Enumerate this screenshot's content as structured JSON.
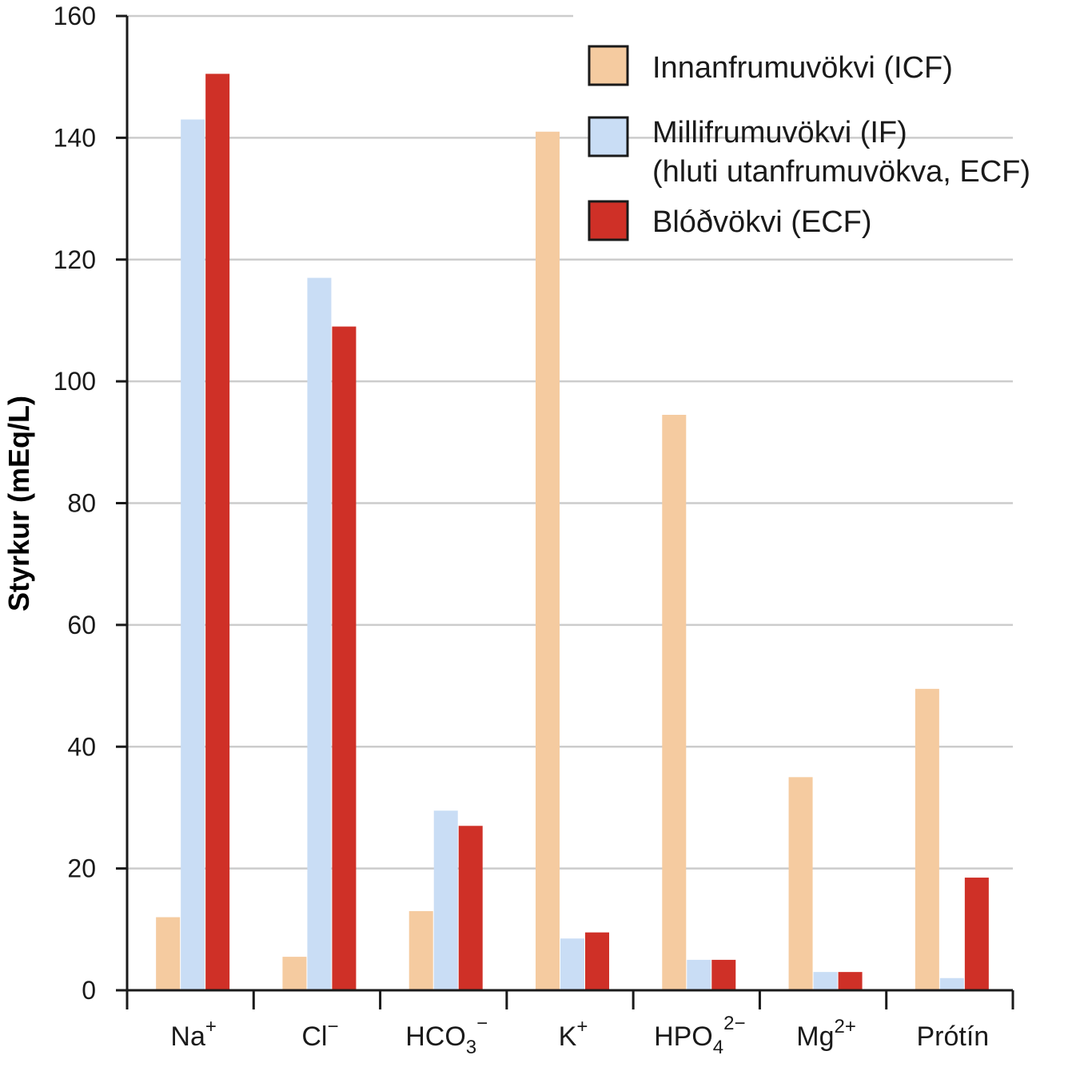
{
  "chart_data": {
    "type": "bar",
    "ylabel": "Styrkur (mEq/L)",
    "xlabel": "",
    "ylim": [
      0,
      160
    ],
    "yticks": [
      "0",
      "20",
      "40",
      "60",
      "80",
      "100",
      "120",
      "140",
      "160"
    ],
    "categories": [
      {
        "base": "Na",
        "sub": "",
        "sup": "+"
      },
      {
        "base": "Cl",
        "sub": "",
        "sup": "−"
      },
      {
        "base": "HCO",
        "sub": "3",
        "sup": "−"
      },
      {
        "base": "K",
        "sub": "",
        "sup": "+"
      },
      {
        "base": "HPO",
        "sub": "4",
        "sup": "2−"
      },
      {
        "base": "Mg",
        "sub": "",
        "sup": "2+"
      },
      {
        "base": "Prótín",
        "sub": "",
        "sup": ""
      }
    ],
    "series": [
      {
        "name": "Innanfrumuvökvi (ICF)",
        "color": "#f5cba0",
        "values": [
          12,
          5.5,
          13,
          141,
          94.5,
          35,
          49.5
        ]
      },
      {
        "name": "Millifrumuvökvi (IF)",
        "name_line2": "(hluti utanfrumuvökva, ECF)",
        "color": "#c9ddf5",
        "values": [
          143,
          117,
          29.5,
          8.5,
          5,
          3,
          2
        ]
      },
      {
        "name": "Blóðvökvi (ECF)",
        "color": "#cf3027",
        "values": [
          150.5,
          109,
          27,
          9.5,
          5,
          3,
          18.5
        ]
      }
    ],
    "grid": true,
    "legend_position": "top-right"
  }
}
